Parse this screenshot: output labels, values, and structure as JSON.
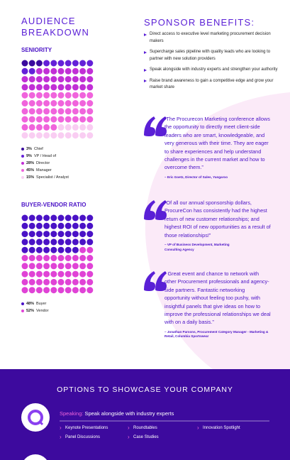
{
  "left": {
    "title": "AUDIENCE BREAKDOWN",
    "seniority": {
      "title": "SENIORITY",
      "items": [
        {
          "value": 3,
          "value_label": "3%",
          "label": "Chief",
          "color": "#3a0a9e"
        },
        {
          "value": 9,
          "value_label": "9%",
          "label": "VP / Head of",
          "color": "#6420d8"
        },
        {
          "value": 28,
          "value_label": "28%",
          "label": "Director",
          "color": "#c12fd6"
        },
        {
          "value": 45,
          "value_label": "45%",
          "label": "Manager",
          "color": "#f064dc"
        },
        {
          "value": 15,
          "value_label": "15%",
          "label": "Specialist / Analyst",
          "color": "#f9cdf2"
        }
      ]
    },
    "ratio": {
      "title": "BUYER-VENDOR RATIO",
      "items": [
        {
          "value": 48,
          "value_label": "48%",
          "label": "Buyer",
          "color": "#4a12c6"
        },
        {
          "value": 52,
          "value_label": "52%",
          "label": "Vendor",
          "color": "#e043d6"
        }
      ]
    }
  },
  "right": {
    "title": "SPONSOR BENEFITS:",
    "bullets": [
      "Direct access to executive level marketing procurement decision makers",
      "Supercharge sales pipeline with quality leads who are looking to partner with new solution providers",
      "Speak alongside with industry experts and strengthen your authority",
      "Raise brand awareness to gain a competitive edge and grow your market share"
    ],
    "quotes": [
      {
        "text": "“The Procurecon Marketing conference allows the opportunity to directly meet client-side leaders who are smart, knowledgeable, and very generous with their time. They are eager to share experiences and help understand challenges in the current market and how to overcome them.”",
        "author": "– Eric Goetz, Director of Sales, Yangaroo"
      },
      {
        "text": "“Of all our annual sponsorship dollars, ProcureCon has consistently had the highest return of new customer relationships; and highest ROI of new opportunities as a result of those relationships!”",
        "author": "– VP of Business Development, Marketing Consulting Agency"
      },
      {
        "text": "“ Great event and chance to network with other Procurement professionals and agency-side partners. Fantastic networking opportunity without feeling too pushy, with insightful panels that give ideas on how to improve the professional relationships we deal with on a daily basis.”",
        "author": "– Jonathan Parsons, Procurement Category Manager - Marketing & Retail, Columbia Sportswear"
      }
    ]
  },
  "options": {
    "title": "OPTIONS TO SHOWCASE YOUR COMPANY",
    "speaking": {
      "label": "Speaking:",
      "text": " Speak alongside with industry experts",
      "items": [
        "Keynote Presentations",
        "Roundtables",
        "Innovation Spotlight",
        "Panel Discussions",
        "Case Studies"
      ]
    }
  }
}
